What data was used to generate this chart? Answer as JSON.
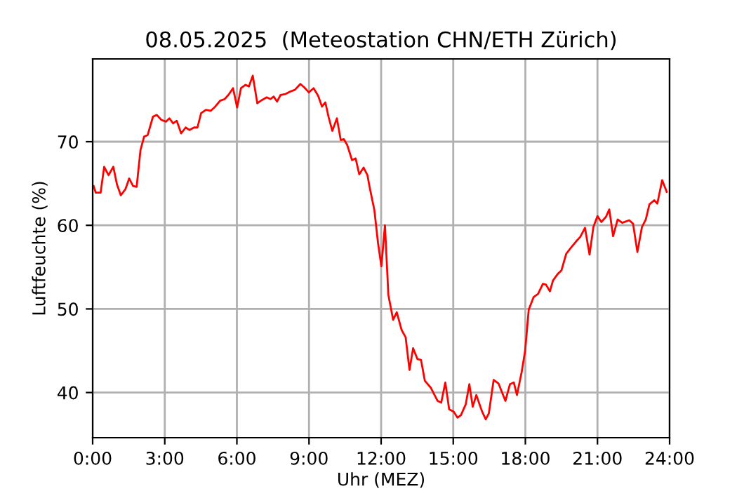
{
  "chart_data": {
    "type": "line",
    "title": "08.05.2025  (Meteostation CHN/ETH Zürich)",
    "xlabel": "Uhr (MEZ)",
    "ylabel": "Luftfeuchte (%)",
    "xlim": [
      0,
      24
    ],
    "ylim": [
      34.6,
      79.9
    ],
    "xticks": [
      {
        "value": 0,
        "label": "0:00"
      },
      {
        "value": 3,
        "label": "3:00"
      },
      {
        "value": 6,
        "label": "6:00"
      },
      {
        "value": 9,
        "label": "9:00"
      },
      {
        "value": 12,
        "label": "12:00"
      },
      {
        "value": 15,
        "label": "15:00"
      },
      {
        "value": 18,
        "label": "18:00"
      },
      {
        "value": 21,
        "label": "21:00"
      },
      {
        "value": 24,
        "label": "24:00"
      }
    ],
    "yticks": [
      40,
      50,
      60,
      70
    ],
    "grid": true,
    "marker": "none",
    "line_style": "solid",
    "series": [
      {
        "color": "#ff0000",
        "x": [
          0.04,
          0.13,
          0.33,
          0.48,
          0.66,
          0.86,
          1.01,
          1.17,
          1.36,
          1.52,
          1.68,
          1.83,
          1.99,
          2.14,
          2.29,
          2.51,
          2.67,
          2.86,
          3.05,
          3.19,
          3.35,
          3.5,
          3.68,
          3.87,
          4.03,
          4.22,
          4.36,
          4.51,
          4.71,
          4.91,
          5.1,
          5.3,
          5.49,
          5.65,
          5.84,
          6.01,
          6.17,
          6.36,
          6.5,
          6.66,
          6.85,
          7.05,
          7.24,
          7.4,
          7.53,
          7.67,
          7.82,
          8.02,
          8.22,
          8.41,
          8.64,
          8.8,
          8.99,
          9.19,
          9.38,
          9.54,
          9.68,
          9.81,
          9.97,
          10.16,
          10.32,
          10.45,
          10.59,
          10.79,
          10.94,
          11.09,
          11.27,
          11.43,
          11.52,
          11.72,
          11.87,
          12.01,
          12.16,
          12.3,
          12.5,
          12.65,
          12.85,
          13.02,
          13.18,
          13.33,
          13.51,
          13.66,
          13.82,
          14.06,
          14.35,
          14.5,
          14.67,
          14.83,
          15.02,
          15.18,
          15.32,
          15.52,
          15.67,
          15.81,
          15.96,
          16.19,
          16.35,
          16.48,
          16.68,
          16.88,
          17.17,
          17.36,
          17.52,
          17.65,
          17.85,
          17.99,
          18.14,
          18.34,
          18.53,
          18.73,
          18.86,
          19.02,
          19.15,
          19.35,
          19.5,
          19.7,
          19.89,
          20.09,
          20.28,
          20.48,
          20.67,
          20.83,
          21.0,
          21.16,
          21.35,
          21.49,
          21.65,
          21.84,
          22.03,
          22.32,
          22.48,
          22.66,
          22.85,
          23.01,
          23.16,
          23.36,
          23.49,
          23.69,
          23.88
        ],
        "values": [
          64.7,
          63.9,
          63.9,
          67.0,
          66.0,
          67.0,
          64.9,
          63.6,
          64.3,
          65.6,
          64.7,
          64.6,
          69.0,
          70.6,
          70.8,
          73.0,
          73.2,
          72.6,
          72.4,
          72.8,
          72.2,
          72.5,
          71.0,
          71.7,
          71.4,
          71.7,
          71.7,
          73.4,
          73.8,
          73.7,
          74.2,
          74.9,
          75.1,
          75.6,
          76.4,
          74.1,
          76.4,
          76.8,
          76.6,
          77.9,
          74.6,
          75.0,
          75.3,
          75.1,
          75.4,
          74.8,
          75.6,
          75.7,
          76.0,
          76.2,
          76.9,
          76.5,
          75.9,
          76.4,
          75.5,
          74.2,
          74.7,
          73.0,
          71.3,
          72.8,
          70.2,
          70.3,
          69.6,
          67.8,
          68.0,
          66.1,
          66.9,
          66.0,
          64.6,
          61.8,
          57.9,
          55.1,
          60.0,
          51.7,
          48.7,
          49.6,
          47.5,
          46.6,
          42.7,
          45.3,
          44.0,
          43.9,
          41.4,
          40.6,
          39.0,
          38.8,
          41.2,
          38.0,
          37.7,
          37.0,
          37.3,
          38.6,
          41.0,
          38.3,
          39.7,
          37.8,
          36.8,
          37.5,
          41.5,
          41.1,
          39.0,
          41.0,
          41.2,
          39.7,
          42.5,
          45.0,
          49.9,
          51.4,
          51.8,
          53.0,
          52.9,
          52.1,
          53.4,
          54.2,
          54.6,
          56.6,
          57.3,
          58.0,
          58.6,
          59.7,
          56.5,
          59.8,
          61.1,
          60.4,
          61.0,
          61.9,
          58.7,
          60.7,
          60.3,
          60.6,
          60.2,
          56.8,
          59.8,
          60.7,
          62.5,
          63.0,
          62.6,
          65.4,
          64.0
        ]
      }
    ]
  }
}
